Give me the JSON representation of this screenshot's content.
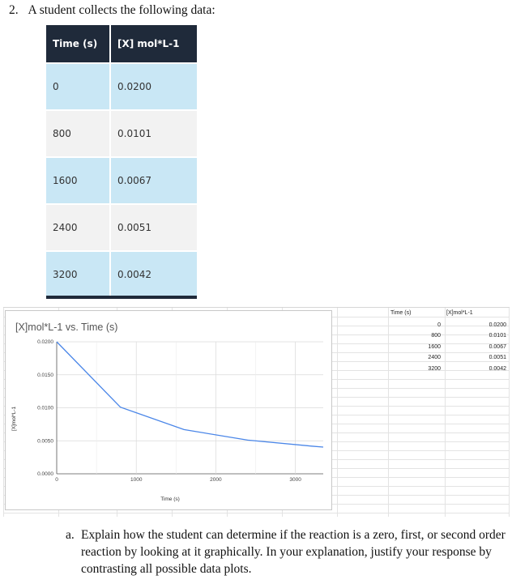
{
  "question": {
    "number": "2.",
    "text": "A student collects the following data:"
  },
  "table": {
    "headers": [
      "Time (s)",
      "[X] mol*L-1"
    ],
    "rows": [
      [
        "0",
        "0.0200"
      ],
      [
        "800",
        "0.0101"
      ],
      [
        "1600",
        "0.0067"
      ],
      [
        "2400",
        "0.0051"
      ],
      [
        "3200",
        "0.0042"
      ]
    ]
  },
  "spreadsheet": {
    "headers": [
      "Time (s)",
      "[X]mol*L-1"
    ],
    "rows": [
      [
        "0",
        "0.0200"
      ],
      [
        "800",
        "0.0101"
      ],
      [
        "1600",
        "0.0067"
      ],
      [
        "2400",
        "0.0051"
      ],
      [
        "3200",
        "0.0042"
      ]
    ]
  },
  "chart_data": {
    "type": "line",
    "title": "[X]mol*L-1 vs. Time (s)",
    "xlabel": "Time (s)",
    "ylabel": "[X]mol*L-1",
    "x": [
      0,
      800,
      1600,
      2400,
      3200
    ],
    "series": [
      {
        "values": [
          0.02,
          0.0101,
          0.0067,
          0.0051,
          0.0042
        ],
        "color": "#4a86e8"
      }
    ],
    "xlim": [
      0,
      3200
    ],
    "ylim": [
      0,
      0.02
    ],
    "x_ticks": [
      "0",
      "1000",
      "2000",
      "3000"
    ],
    "x_tick_values": [
      0,
      1000,
      2000,
      3000
    ],
    "y_ticks": [
      "0.0000",
      "0.0050",
      "0.0100",
      "0.0150",
      "0.0200"
    ],
    "y_tick_values": [
      0,
      0.005,
      0.01,
      0.015,
      0.02
    ],
    "grid": true,
    "legend": "none"
  },
  "question_a": {
    "label": "a.",
    "text": "Explain how the student can determine if the reaction is a zero, first, or second order reaction by looking at it graphically. In your explanation, justify your response by contrasting all possible data plots."
  }
}
